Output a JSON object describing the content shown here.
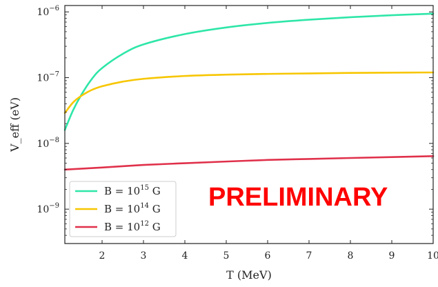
{
  "chart_data": {
    "type": "line",
    "title": "",
    "xlabel": "T (MeV)",
    "ylabel": "V_eff (eV)",
    "xlim": [
      1.1,
      10
    ],
    "ylim": [
      3e-10,
      1.25e-06
    ],
    "yscale": "log",
    "x_ticks": [
      2,
      3,
      4,
      5,
      6,
      7,
      8,
      9,
      10
    ],
    "x_tick_labels": [
      "2",
      "3",
      "4",
      "5",
      "6",
      "7",
      "8",
      "9",
      "10"
    ],
    "y_ticks": [
      1e-09,
      1e-08,
      1e-07,
      1e-06
    ],
    "y_tick_labels": [
      {
        "base": "10",
        "exp": "−9"
      },
      {
        "base": "10",
        "exp": "−8"
      },
      {
        "base": "10",
        "exp": "−7"
      },
      {
        "base": "10",
        "exp": "−6"
      }
    ],
    "grid": false,
    "legend_position": "lower-left",
    "series": [
      {
        "name": "B = 10^15 G",
        "legend": {
          "prefix": "B = 10",
          "exp": "15",
          "unit": "G"
        },
        "color": "#2ee6a8",
        "x": [
          1.1,
          1.3,
          1.5,
          1.75,
          2,
          2.5,
          3,
          4,
          5,
          6,
          7,
          8,
          9,
          10
        ],
        "y": [
          1.6e-08,
          3.2e-08,
          5.5e-08,
          9.5e-08,
          1.4e-07,
          2.3e-07,
          3.2e-07,
          4.6e-07,
          5.8e-07,
          6.8e-07,
          7.6e-07,
          8.3e-07,
          8.9e-07,
          9.4e-07
        ]
      },
      {
        "name": "B = 10^14 G",
        "legend": {
          "prefix": "B = 10",
          "exp": "14",
          "unit": "G"
        },
        "color": "#f7c600",
        "x": [
          1.1,
          1.3,
          1.5,
          1.75,
          2,
          2.5,
          3,
          4,
          5,
          6,
          7,
          8,
          9,
          10
        ],
        "y": [
          2.9e-08,
          4.2e-08,
          5.3e-08,
          6.5e-08,
          7.4e-08,
          8.7e-08,
          9.6e-08,
          1.06e-07,
          1.11e-07,
          1.14e-07,
          1.16e-07,
          1.18e-07,
          1.19e-07,
          1.2e-07
        ]
      },
      {
        "name": "B = 10^12 G",
        "legend": {
          "prefix": "B = 10",
          "exp": "12",
          "unit": "G"
        },
        "color": "#e0304a",
        "x": [
          1.1,
          2,
          3,
          4,
          5,
          6,
          7,
          8,
          9,
          10
        ],
        "y": [
          4e-09,
          4.3e-09,
          4.7e-09,
          5e-09,
          5.3e-09,
          5.6e-09,
          5.8e-09,
          6e-09,
          6.2e-09,
          6.4e-09
        ]
      }
    ],
    "annotations": [
      {
        "text": "PRELIMINARY",
        "color": "#ff0000",
        "position": "lower-right"
      }
    ]
  }
}
